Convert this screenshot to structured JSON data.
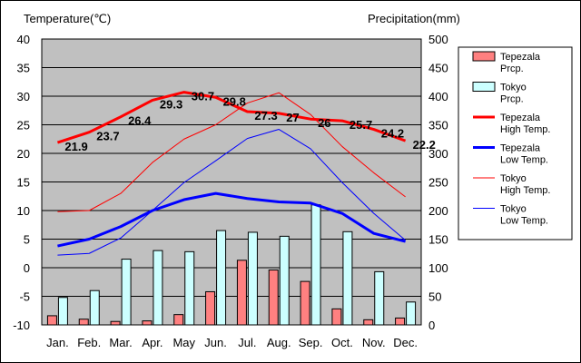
{
  "chart_data": {
    "type": "bar+line",
    "left_axis_title": "Temperature(℃)",
    "right_axis_title": "Precipitation(mm)",
    "left_ylim": [
      -10,
      40
    ],
    "left_ticks": [
      -10,
      -5,
      0,
      5,
      10,
      15,
      20,
      25,
      30,
      35,
      40
    ],
    "right_ylim": [
      0,
      500
    ],
    "right_ticks": [
      0,
      50,
      100,
      150,
      200,
      250,
      300,
      350,
      400,
      450,
      500
    ],
    "categories": [
      "Jan.",
      "Feb.",
      "Mar.",
      "Apr.",
      "May",
      "Jun.",
      "Jul.",
      "Aug.",
      "Sep.",
      "Oct.",
      "Nov.",
      "Dec."
    ],
    "grid": "horizontal",
    "legend_position": "right",
    "bar_series": [
      {
        "name": "Tepezala Prcp.",
        "legend_lines": [
          "Tepezala",
          "Prcp."
        ],
        "color": "#ff8080",
        "values": [
          16,
          10,
          6,
          7,
          18,
          58,
          113,
          96,
          76,
          28,
          9,
          12
        ]
      },
      {
        "name": "Tokyo Prcp.",
        "legend_lines": [
          "Tokyo",
          "Prcp."
        ],
        "color": "#ccffff",
        "values": [
          48,
          60,
          115,
          130,
          128,
          165,
          162,
          155,
          210,
          163,
          93,
          40
        ]
      }
    ],
    "line_series": [
      {
        "name": "Tepezala High Temp.",
        "legend_lines": [
          "Tepezala",
          "High Temp."
        ],
        "color": "#ff0000",
        "width": 3,
        "values": [
          21.9,
          23.7,
          26.4,
          29.3,
          30.7,
          29.8,
          27.3,
          27.0,
          26.0,
          25.7,
          24.2,
          22.2
        ],
        "labels": [
          "21.9",
          "23.7",
          "26.4",
          "29.3",
          "30.7",
          "29.8",
          "27.3",
          "27",
          "26",
          "25.7",
          "24.2",
          "22.2"
        ]
      },
      {
        "name": "Tepezala Low Temp.",
        "legend_lines": [
          "Tepezala",
          "Low Temp."
        ],
        "color": "#0000ff",
        "width": 3,
        "values": [
          3.8,
          5.0,
          7.2,
          10.0,
          11.9,
          13.0,
          12.1,
          11.5,
          11.3,
          9.5,
          6.0,
          4.6
        ]
      },
      {
        "name": "Tokyo High Temp.",
        "legend_lines": [
          "Tokyo",
          "High Temp."
        ],
        "color": "#ff0000",
        "width": 1,
        "values": [
          9.8,
          10.0,
          13.0,
          18.4,
          22.5,
          25.0,
          28.8,
          30.6,
          26.8,
          21.2,
          16.6,
          12.4
        ]
      },
      {
        "name": "Tokyo Low Temp.",
        "legend_lines": [
          "Tokyo",
          "Low Temp."
        ],
        "color": "#0000ff",
        "width": 1,
        "values": [
          2.2,
          2.5,
          5.2,
          10.0,
          14.9,
          18.7,
          22.6,
          24.2,
          20.8,
          14.9,
          9.5,
          4.8
        ]
      }
    ]
  }
}
